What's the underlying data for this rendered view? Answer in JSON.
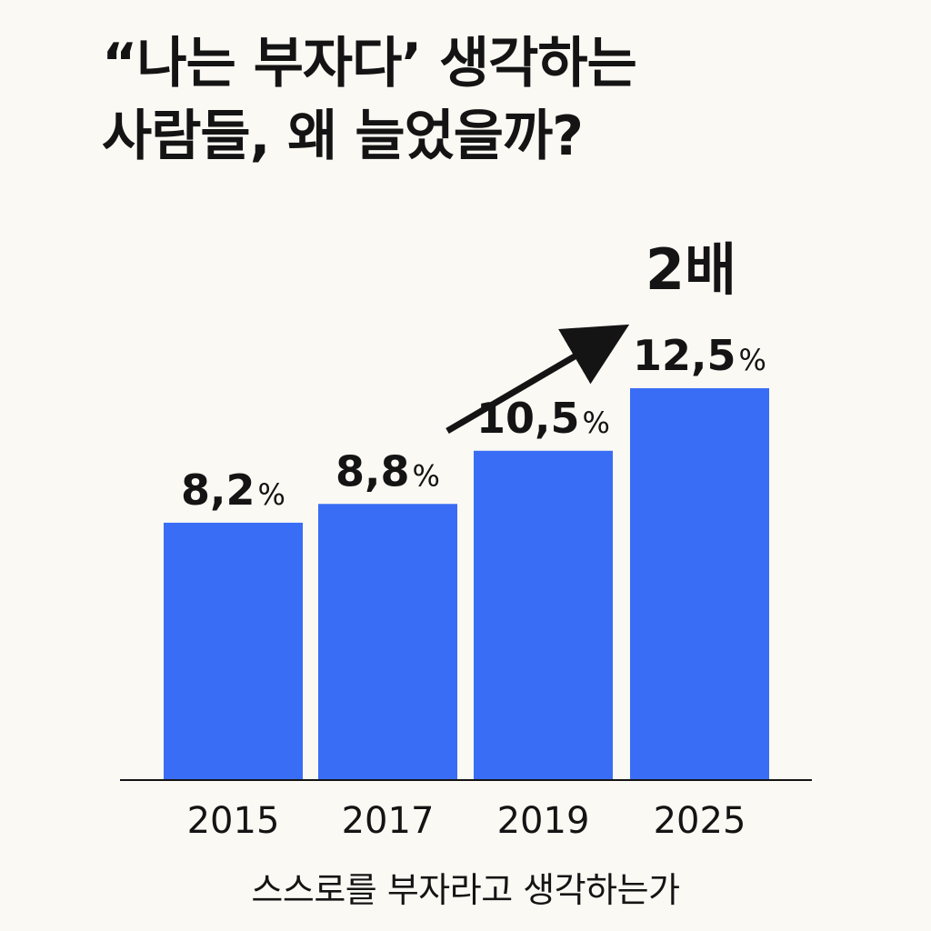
{
  "title_lines": [
    "“나는 부자다’ 생각하는",
    "사람들, 왜 늘었을까?"
  ],
  "annotation": "2배",
  "colors": {
    "bar": "#3a6df5",
    "text": "#141414",
    "axis": "#141414",
    "background": "#fbf9f4"
  },
  "chart_data": {
    "type": "bar",
    "categories": [
      "2015",
      "2017",
      "2019",
      "2025"
    ],
    "values": [
      8.2,
      8.8,
      10.5,
      12.5
    ],
    "value_labels": [
      "8,2",
      "8,8",
      "10,5",
      "12,5"
    ],
    "unit": "%",
    "title": "“나는 부자다’ 생각하는 사람들, 왜 늘었을까?",
    "xlabel": "스스로를 부자라고 생각하는가",
    "ylabel": "",
    "ylim": [
      0,
      15
    ],
    "grid": false,
    "annotation": "2배"
  },
  "footer": "스스로를 부자라고 생각하는가"
}
